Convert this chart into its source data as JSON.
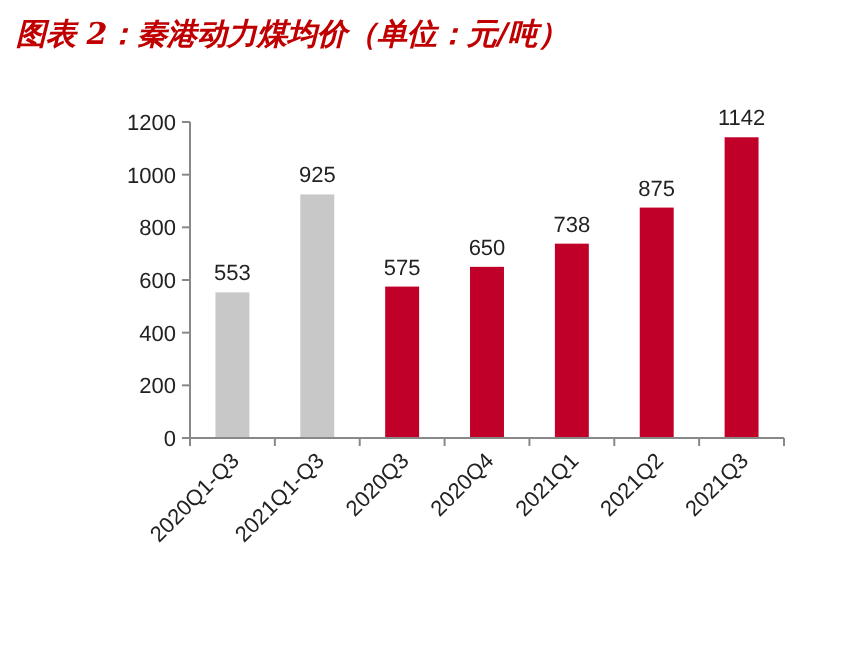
{
  "chart_data": {
    "type": "bar",
    "title": "图表 2：秦港动力煤均价（单位：元/吨）",
    "categories": [
      "2020Q1-Q3",
      "2021Q1-Q3",
      "2020Q3",
      "2020Q4",
      "2021Q1",
      "2021Q2",
      "2021Q3"
    ],
    "values": [
      553,
      925,
      575,
      650,
      738,
      875,
      1142
    ],
    "colors": [
      "#c8c8c8",
      "#c8c8c8",
      "#c00028",
      "#c00028",
      "#c00028",
      "#c00028",
      "#c00028"
    ],
    "ylim": [
      0,
      1200
    ],
    "yticks": [
      0,
      200,
      400,
      600,
      800,
      1000,
      1200
    ],
    "data_labels": true
  }
}
